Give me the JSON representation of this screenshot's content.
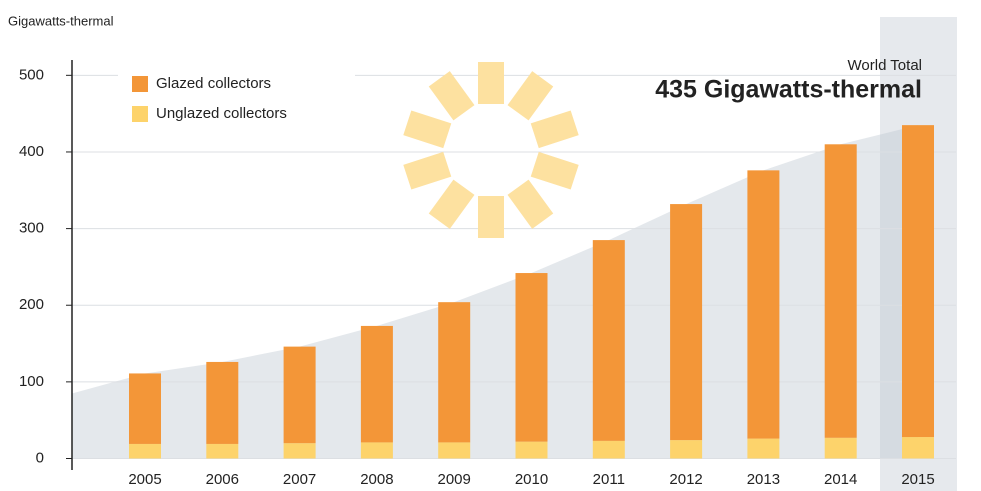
{
  "chart_data": {
    "type": "bar",
    "stacked": true,
    "y_label": "Gigawatts-thermal",
    "annotation_label": "World Total",
    "annotation_value": "435 Gigawatts-thermal",
    "categories": [
      "2005",
      "2006",
      "2007",
      "2008",
      "2009",
      "2010",
      "2011",
      "2012",
      "2013",
      "2014",
      "2015"
    ],
    "series": [
      {
        "name": "Glazed collectors",
        "color": "#f39638",
        "values": [
          92,
          107,
          126,
          152,
          183,
          220,
          262,
          308,
          350,
          383,
          407
        ]
      },
      {
        "name": "Unglazed collectors",
        "color": "#fdd36b",
        "values": [
          19,
          19,
          20,
          21,
          21,
          22,
          23,
          24,
          26,
          27,
          28
        ]
      }
    ],
    "ylim": [
      -15,
      520
    ],
    "yticks": [
      0,
      100,
      200,
      300,
      400,
      500
    ],
    "grid": true,
    "legend": "upper left"
  }
}
